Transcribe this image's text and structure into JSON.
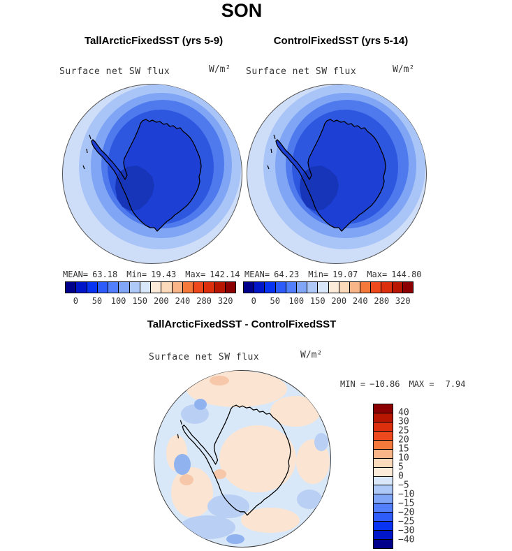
{
  "figure": {
    "title": "SON"
  },
  "panels": [
    {
      "title": "TallArcticFixedSST (yrs 5-9)",
      "field": "Surface net SW flux",
      "units": "W/m²",
      "stats": {
        "mean_label": "MEAN=",
        "mean": "63.18",
        "min_label": "Min=",
        "min": "19.43",
        "max_label": "Max=",
        "max": "142.14"
      },
      "colorbar_ticks": [
        "0",
        "50",
        "100",
        "150",
        "200",
        "240",
        "280",
        "320"
      ]
    },
    {
      "title": "ControlFixedSST (yrs 5-14)",
      "field": "Surface net SW flux",
      "units": "W/m²",
      "stats": {
        "mean_label": "MEAN=",
        "mean": "64.23",
        "min_label": "Min=",
        "min": "19.07",
        "max_label": "Max=",
        "max": "144.80"
      },
      "colorbar_ticks": [
        "0",
        "50",
        "100",
        "150",
        "200",
        "240",
        "280",
        "320"
      ]
    }
  ],
  "diff_panel": {
    "title": "TallArcticFixedSST - ControlFixedSST",
    "field": "Surface net SW flux",
    "units": "W/m²",
    "stats": {
      "min_label": "MIN =",
      "min": "−10.86",
      "max_label": "MAX =",
      "max": "7.94"
    },
    "colorbar_ticks": [
      "40",
      "30",
      "25",
      "20",
      "15",
      "10",
      "5",
      "0",
      "−5",
      "−10",
      "−15",
      "−20",
      "−25",
      "−30",
      "−40"
    ]
  },
  "colors": {
    "palette": [
      "#00008b",
      "#0016c8",
      "#0833f0",
      "#2e5cfa",
      "#527ffc",
      "#82a6f7",
      "#aec8f7",
      "#d8e7f9",
      "#fcebd9",
      "#fbd9bb",
      "#f9b488",
      "#f5793a",
      "#ee491c",
      "#dc2f0e",
      "#b81600",
      "#8b0000"
    ],
    "map": {
      "ring1": "#cfdef8",
      "ring2": "#a9c4f7",
      "ring3": "#7fa5f4",
      "ring4": "#4e7aee",
      "ring5": "#2e57e0",
      "land": "#1d3fd4",
      "land_dark": "#1735b8",
      "outline": "#000000",
      "edge": "#555555"
    },
    "diff": {
      "bg": "#d9e8f8",
      "peach": "#fbe5d2",
      "blue": "#b9cff4",
      "blue2": "#90b3ef",
      "salmon": "#f7c7a9",
      "edge": "#444444"
    }
  },
  "chart_data": [
    {
      "type": "heatmap",
      "subtype": "south-polar contour map",
      "season": "SON",
      "title": "TallArcticFixedSST (yrs 5-9)",
      "variable": "Surface net SW flux",
      "units": "W/m²",
      "region": "Antarctica, south polar stereographic view",
      "mean": 63.18,
      "min": 19.43,
      "max": 142.14,
      "colorbar_levels": [
        0,
        50,
        100,
        150,
        200,
        240,
        280,
        320
      ],
      "palette": "16-step blue(low) to red(high); all plotted values fall in blue range, lightest blue at map edge (~140 W/m²) darkening toward pole (~20 W/m²)"
    },
    {
      "type": "heatmap",
      "subtype": "south-polar contour map",
      "season": "SON",
      "title": "ControlFixedSST (yrs 5-14)",
      "variable": "Surface net SW flux",
      "units": "W/m²",
      "region": "Antarctica, south polar stereographic view",
      "mean": 64.23,
      "min": 19.07,
      "max": 144.8,
      "colorbar_levels": [
        0,
        50,
        100,
        150,
        200,
        240,
        280,
        320
      ],
      "palette": "16-step blue(low) to red(high); all plotted values fall in blue range"
    },
    {
      "type": "heatmap",
      "subtype": "south-polar contour difference map",
      "season": "SON",
      "title": "TallArcticFixedSST - ControlFixedSST",
      "variable": "Surface net SW flux",
      "units": "W/m²",
      "region": "Antarctica, south polar stereographic view",
      "min": -10.86,
      "max": 7.94,
      "colorbar_levels": [
        -40,
        -30,
        -25,
        -20,
        -15,
        -10,
        -5,
        0,
        5,
        10,
        15,
        20,
        25,
        30,
        40
      ],
      "palette": "16-step blue(negative) to red(positive); field is mostly weak: light blue (0 to −5) and pale peach (0 to +5) patches with a few −5 to −15 blue spots"
    }
  ]
}
